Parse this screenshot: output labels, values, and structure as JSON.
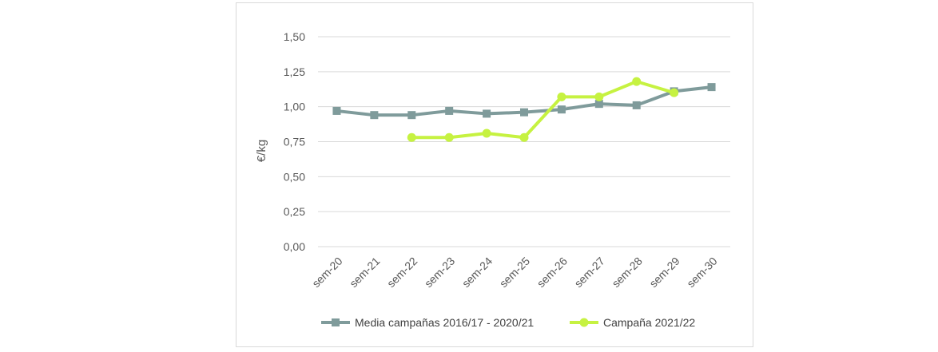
{
  "chart_data": {
    "type": "line",
    "title": "",
    "xlabel": "",
    "ylabel": "€/kg",
    "categories": [
      "sem-20",
      "sem-21",
      "sem-22",
      "sem-23",
      "sem-24",
      "sem-25",
      "sem-26",
      "sem-27",
      "sem-28",
      "sem-29",
      "sem-30"
    ],
    "ylim": [
      0,
      1.5
    ],
    "yticks": [
      "0,00",
      "0,25",
      "0,50",
      "0,75",
      "1,00",
      "1,25",
      "1,50"
    ],
    "ytick_values": [
      0,
      0.25,
      0.5,
      0.75,
      1.0,
      1.25,
      1.5
    ],
    "grid": true,
    "legend_position": "bottom",
    "series": [
      {
        "name": "Media campañas 2016/17 - 2020/21",
        "color": "#7f9b9b",
        "marker": "square",
        "values": [
          0.97,
          0.94,
          0.94,
          0.97,
          0.95,
          0.96,
          0.98,
          1.02,
          1.01,
          1.11,
          1.14
        ]
      },
      {
        "name": "Campaña 2021/22",
        "color": "#c6f241",
        "marker": "circle",
        "values": [
          null,
          null,
          0.78,
          0.78,
          0.81,
          0.78,
          1.07,
          1.07,
          1.18,
          1.1,
          null
        ]
      }
    ]
  }
}
